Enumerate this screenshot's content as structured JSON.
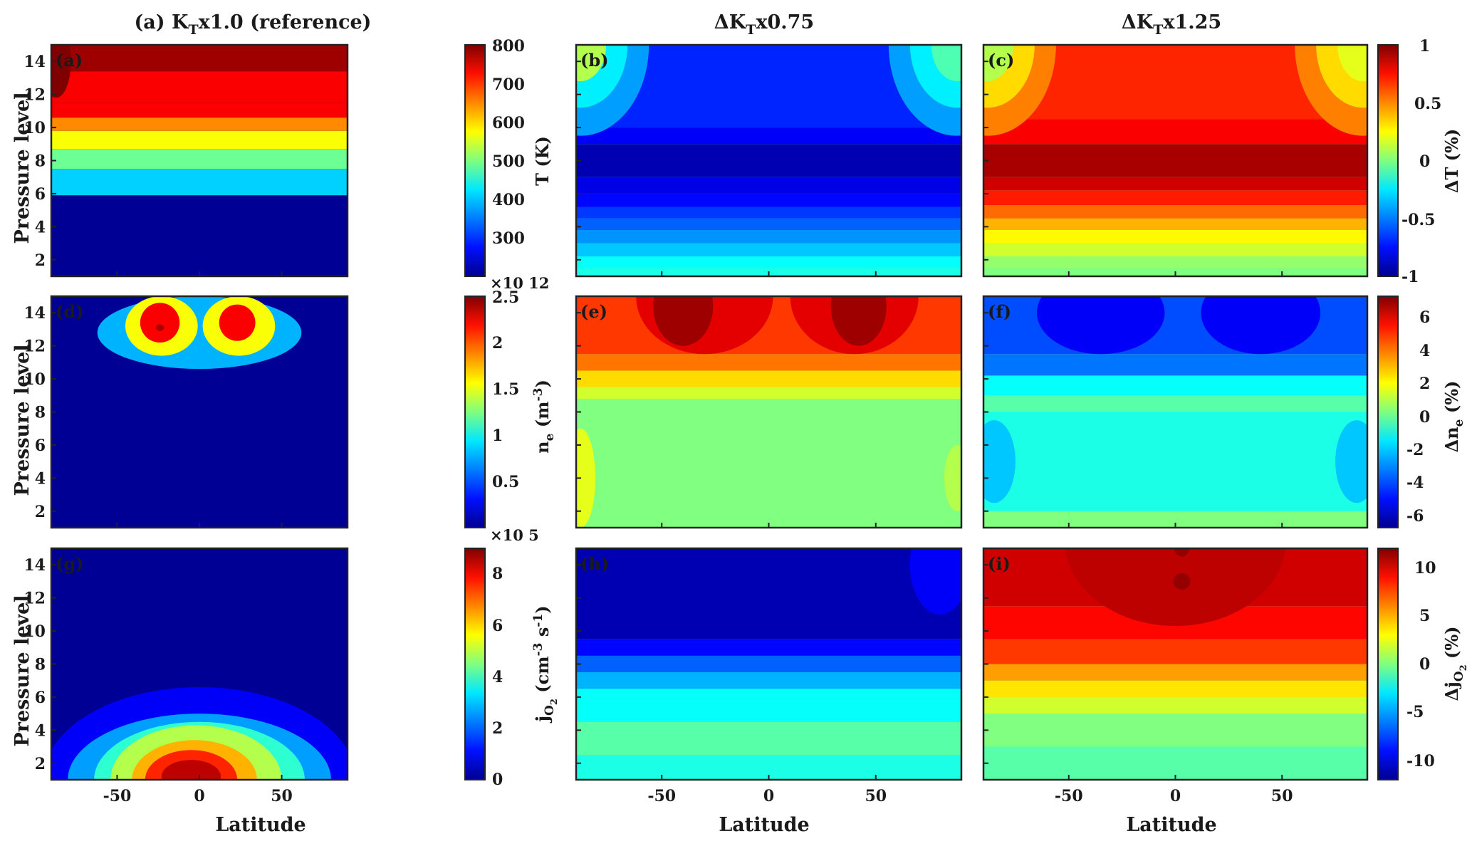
{
  "figure": {
    "column_titles": [
      {
        "prefix": "(a) K",
        "sub": "T",
        "suffix": "x1.0 (reference)"
      },
      {
        "prefix": "ΔK",
        "sub": "T",
        "suffix": "x0.75"
      },
      {
        "prefix": "ΔK",
        "sub": "T",
        "suffix": "x1.25"
      }
    ],
    "x_axis": {
      "label": "Latitude",
      "ticks": [
        "-50",
        "0",
        "50"
      ],
      "tick_values": [
        -50,
        0,
        50
      ],
      "range": [
        -90,
        90
      ]
    },
    "y_axis": {
      "label": "Pressure level",
      "ticks": [
        "2",
        "4",
        "6",
        "8",
        "10",
        "12",
        "14"
      ],
      "tick_values": [
        2,
        4,
        6,
        8,
        10,
        12,
        14
      ],
      "range": [
        1,
        15
      ]
    }
  },
  "chart_data": [
    {
      "id": "a",
      "panel_label": "(a)",
      "type": "heatmap",
      "row": 0,
      "col": 0,
      "colorbar": {
        "label": "T (K)",
        "ticks": [
          "300",
          "400",
          "500",
          "600",
          "700",
          "800"
        ],
        "tick_values": [
          300,
          400,
          500,
          600,
          700,
          800
        ],
        "range": [
          200,
          800
        ]
      },
      "levels": [
        [
          5.9,
          0.02
        ],
        [
          7.5,
          0.33
        ],
        [
          8.7,
          0.48
        ],
        [
          9.8,
          0.62
        ],
        [
          10.6,
          0.74
        ],
        [
          11.5,
          0.88
        ],
        [
          13.4,
          0.88
        ],
        [
          15.2,
          0.97
        ]
      ],
      "features": [
        {
          "lat": -87,
          "p": 14,
          "rx": 9,
          "ry": 2.2,
          "v": 1.0
        }
      ]
    },
    {
      "id": "b",
      "panel_label": "(b)",
      "type": "heatmap",
      "row": 0,
      "col": 1,
      "colorbar": {
        "label": "ΔT (%)",
        "ticks": [
          "-1",
          "-0.5",
          "0",
          "0.5",
          "1"
        ],
        "tick_values": [
          -1,
          -0.5,
          0,
          0.5,
          1
        ],
        "range": [
          -1,
          1
        ]
      },
      "levels": [
        [
          1.5,
          0.4
        ],
        [
          2.2,
          0.38
        ],
        [
          3.0,
          0.32
        ],
        [
          3.8,
          0.27
        ],
        [
          4.5,
          0.22
        ],
        [
          5.2,
          0.18
        ],
        [
          6.0,
          0.13
        ],
        [
          7.0,
          0.1
        ],
        [
          9.0,
          0.05
        ],
        [
          10.0,
          0.12
        ],
        [
          15.2,
          0.16
        ]
      ],
      "features": [
        {
          "lat": -88,
          "p": 15,
          "rx": 32,
          "ry": 5.5,
          "v": 0.28
        },
        {
          "lat": -88,
          "p": 15,
          "rx": 22,
          "ry": 3.8,
          "v": 0.36
        },
        {
          "lat": -88,
          "p": 15,
          "rx": 12,
          "ry": 2.2,
          "v": 0.55
        },
        {
          "lat": 88,
          "p": 15,
          "rx": 32,
          "ry": 5.5,
          "v": 0.28
        },
        {
          "lat": 88,
          "p": 15,
          "rx": 22,
          "ry": 3.8,
          "v": 0.36
        },
        {
          "lat": 88,
          "p": 15,
          "rx": 12,
          "ry": 2.2,
          "v": 0.45
        }
      ]
    },
    {
      "id": "c",
      "panel_label": "(c)",
      "type": "heatmap",
      "row": 0,
      "col": 2,
      "colorbar": {
        "label": "ΔT (%)",
        "ticks": [
          "-1",
          "-0.5",
          "0",
          "0.5",
          "1"
        ],
        "tick_values": [
          -1,
          -0.5,
          0,
          0.5,
          1
        ],
        "range": [
          -1,
          1
        ]
      },
      "levels": [
        [
          1.5,
          0.5
        ],
        [
          2.2,
          0.52
        ],
        [
          3.0,
          0.58
        ],
        [
          3.8,
          0.63
        ],
        [
          4.5,
          0.7
        ],
        [
          5.3,
          0.77
        ],
        [
          6.2,
          0.85
        ],
        [
          7.0,
          0.92
        ],
        [
          9.0,
          0.96
        ],
        [
          10.5,
          0.88
        ],
        [
          15.2,
          0.84
        ]
      ],
      "features": [
        {
          "lat": -88,
          "p": 15,
          "rx": 32,
          "ry": 5.5,
          "v": 0.75
        },
        {
          "lat": -88,
          "p": 15,
          "rx": 22,
          "ry": 3.8,
          "v": 0.66
        },
        {
          "lat": -88,
          "p": 15,
          "rx": 12,
          "ry": 2.2,
          "v": 0.55
        },
        {
          "lat": 88,
          "p": 15,
          "rx": 32,
          "ry": 5.5,
          "v": 0.75
        },
        {
          "lat": 88,
          "p": 15,
          "rx": 22,
          "ry": 3.8,
          "v": 0.66
        },
        {
          "lat": 88,
          "p": 15,
          "rx": 12,
          "ry": 2.2,
          "v": 0.6
        }
      ]
    },
    {
      "id": "d",
      "panel_label": "(d)",
      "type": "heatmap",
      "row": 1,
      "col": 0,
      "colorbar": {
        "label": "n_e (m^-3)",
        "multiplier": "×10 12",
        "ticks": [
          "0.5",
          "1",
          "1.5",
          "2",
          "2.5"
        ],
        "tick_values": [
          0.5,
          1,
          1.5,
          2,
          2.5
        ],
        "range": [
          0,
          2.5
        ]
      },
      "levels": [
        [
          11.0,
          0.02
        ],
        [
          15.2,
          0.02
        ]
      ],
      "features": [
        {
          "lat": 0,
          "p": 12.8,
          "rx": 62,
          "ry": 2.2,
          "v": 0.3
        },
        {
          "lat": -23,
          "p": 13.2,
          "rx": 22,
          "ry": 1.8,
          "v": 0.62
        },
        {
          "lat": 24,
          "p": 13.2,
          "rx": 22,
          "ry": 1.8,
          "v": 0.62
        },
        {
          "lat": -24,
          "p": 13.4,
          "rx": 12,
          "ry": 1.2,
          "v": 0.88
        },
        {
          "lat": 23,
          "p": 13.4,
          "rx": 11,
          "ry": 1.1,
          "v": 0.88
        },
        {
          "lat": -24,
          "p": 13.1,
          "rx": 2.5,
          "ry": 0.2,
          "v": 0.96
        }
      ]
    },
    {
      "id": "e",
      "panel_label": "(e)",
      "type": "heatmap",
      "row": 1,
      "col": 1,
      "colorbar": {
        "label": "Δn_e (%)",
        "ticks": [
          "-6",
          "-4",
          "-2",
          "0",
          "2",
          "4",
          "6"
        ],
        "tick_values": [
          -6,
          -4,
          -2,
          0,
          2,
          4,
          6
        ],
        "range": [
          -7,
          7
        ]
      },
      "levels": [
        [
          8.8,
          0.5
        ],
        [
          9.5,
          0.58
        ],
        [
          10.5,
          0.66
        ],
        [
          11.5,
          0.76
        ],
        [
          15.2,
          0.82
        ]
      ],
      "features": [
        {
          "lat": -30,
          "p": 15,
          "rx": 32,
          "ry": 3.5,
          "v": 0.9
        },
        {
          "lat": 40,
          "p": 15,
          "rx": 30,
          "ry": 3.5,
          "v": 0.9
        },
        {
          "lat": -40,
          "p": 14.4,
          "rx": 14,
          "ry": 2.4,
          "v": 0.97
        },
        {
          "lat": 42,
          "p": 14.4,
          "rx": 13,
          "ry": 2.4,
          "v": 0.97
        },
        {
          "lat": -88,
          "p": 4,
          "rx": 7,
          "ry": 3,
          "v": 0.6
        },
        {
          "lat": 88,
          "p": 4,
          "rx": 6,
          "ry": 2,
          "v": 0.55
        }
      ]
    },
    {
      "id": "f",
      "panel_label": "(f)",
      "type": "heatmap",
      "row": 1,
      "col": 2,
      "colorbar": {
        "label": "Δn_e (%)",
        "ticks": [
          "-6",
          "-4",
          "-2",
          "0",
          "2",
          "4",
          "6"
        ],
        "tick_values": [
          -6,
          -4,
          -2,
          0,
          2,
          4,
          6
        ],
        "range": [
          -7,
          7
        ]
      },
      "levels": [
        [
          2.0,
          0.5
        ],
        [
          8.0,
          0.4
        ],
        [
          9.0,
          0.46
        ],
        [
          10.2,
          0.38
        ],
        [
          11.5,
          0.24
        ],
        [
          15.2,
          0.2
        ]
      ],
      "features": [
        {
          "lat": -35,
          "p": 14,
          "rx": 30,
          "ry": 2.5,
          "v": 0.12
        },
        {
          "lat": 40,
          "p": 14,
          "rx": 28,
          "ry": 2.5,
          "v": 0.12
        },
        {
          "lat": -85,
          "p": 5,
          "rx": 10,
          "ry": 2.5,
          "v": 0.32
        },
        {
          "lat": 85,
          "p": 5,
          "rx": 10,
          "ry": 2.5,
          "v": 0.32
        }
      ]
    },
    {
      "id": "g",
      "panel_label": "(g)",
      "type": "heatmap",
      "row": 2,
      "col": 0,
      "colorbar": {
        "label": "j_O2 (cm^-3 s^-1)",
        "multiplier": "×10 5",
        "ticks": [
          "0",
          "2",
          "4",
          "6",
          "8"
        ],
        "tick_values": [
          0,
          2,
          4,
          6,
          8
        ],
        "range": [
          0,
          9
        ]
      },
      "levels": [
        [
          15.2,
          0.02
        ]
      ],
      "features": [
        {
          "lat": 0,
          "p": 1,
          "rx": 95,
          "ry": 5.6,
          "v": 0.12
        },
        {
          "lat": 0,
          "p": 1,
          "rx": 80,
          "ry": 4.0,
          "v": 0.28
        },
        {
          "lat": 0,
          "p": 1,
          "rx": 64,
          "ry": 3.5,
          "v": 0.42
        },
        {
          "lat": -2,
          "p": 1,
          "rx": 52,
          "ry": 3.3,
          "v": 0.55
        },
        {
          "lat": -3,
          "p": 1,
          "rx": 38,
          "ry": 2.4,
          "v": 0.7
        },
        {
          "lat": -5,
          "p": 1,
          "rx": 28,
          "ry": 1.8,
          "v": 0.84
        },
        {
          "lat": -5,
          "p": 1.2,
          "rx": 18,
          "ry": 1.0,
          "v": 0.94
        }
      ]
    },
    {
      "id": "h",
      "panel_label": "(h)",
      "type": "heatmap",
      "row": 2,
      "col": 1,
      "colorbar": null,
      "levels": [
        [
          2.5,
          0.4
        ],
        [
          4.5,
          0.46
        ],
        [
          6.5,
          0.38
        ],
        [
          7.5,
          0.3
        ],
        [
          8.5,
          0.22
        ],
        [
          9.5,
          0.13
        ],
        [
          15.2,
          0.05
        ]
      ],
      "features": [
        {
          "lat": 80,
          "p": 14,
          "rx": 14,
          "ry": 3,
          "v": 0.12
        }
      ]
    },
    {
      "id": "i",
      "panel_label": "(i)",
      "type": "heatmap",
      "row": 2,
      "col": 2,
      "colorbar": {
        "label": "Δj_O2 (%)",
        "ticks": [
          "-10",
          "-5",
          "0",
          "5",
          "10"
        ],
        "tick_values": [
          -10,
          -5,
          0,
          5,
          10
        ],
        "range": [
          -12,
          12
        ]
      },
      "levels": [
        [
          3.0,
          0.46
        ],
        [
          5.0,
          0.5
        ],
        [
          6.0,
          0.58
        ],
        [
          7.0,
          0.65
        ],
        [
          8.0,
          0.72
        ],
        [
          9.5,
          0.82
        ],
        [
          11.5,
          0.87
        ],
        [
          15.2,
          0.92
        ]
      ],
      "features": [
        {
          "lat": 0,
          "p": 15.5,
          "rx": 52,
          "ry": 5.2,
          "v": 0.94
        },
        {
          "lat": 3,
          "p": 13,
          "rx": 4,
          "ry": 0.5,
          "v": 0.98
        },
        {
          "lat": 3,
          "p": 15.2,
          "rx": 4,
          "ry": 0.7,
          "v": 0.98
        }
      ]
    }
  ]
}
